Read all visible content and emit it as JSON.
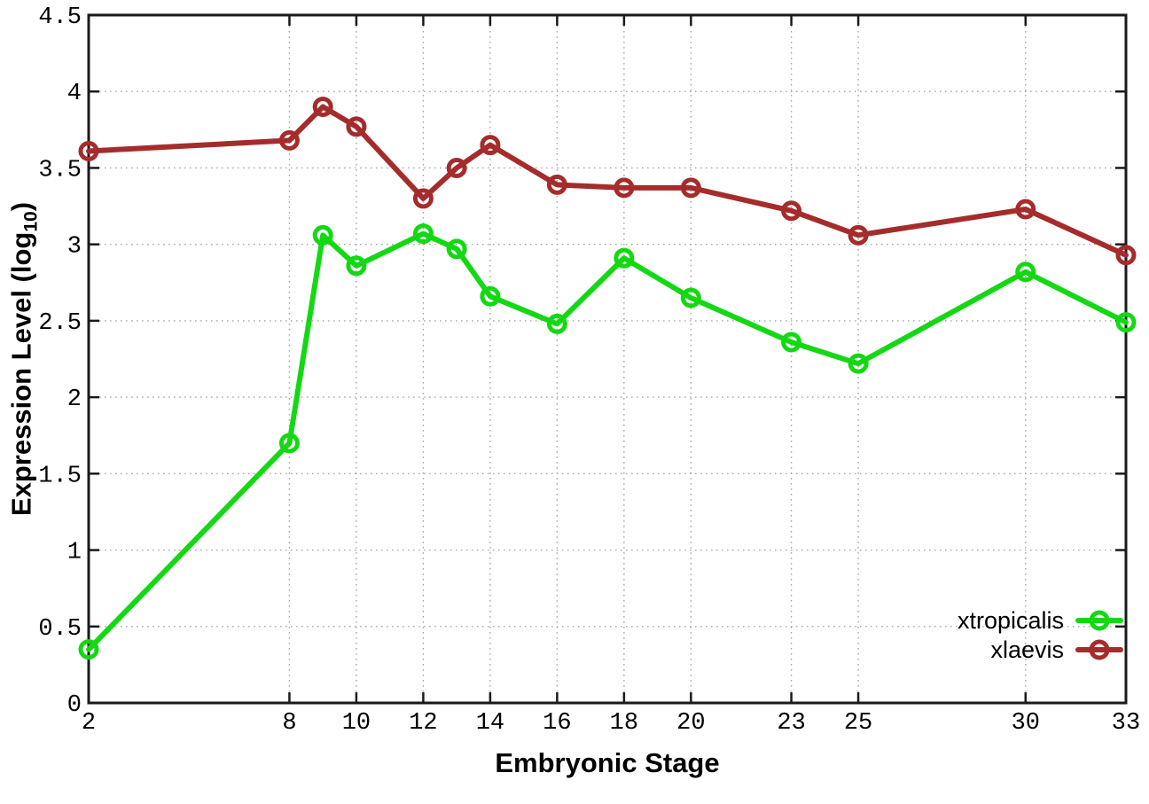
{
  "chart_data": {
    "type": "line",
    "title": "",
    "xlabel": "Embryonic Stage",
    "ylabel": "Expression Level (log10)",
    "ylabel_parts": {
      "pre": "Expression Level (log",
      "sub": "10",
      "post": ")"
    },
    "xlim": [
      2,
      33
    ],
    "ylim": [
      0,
      4.5
    ],
    "grid": true,
    "x": [
      2,
      8,
      9,
      10,
      12,
      13,
      14,
      16,
      18,
      20,
      23,
      25,
      30,
      33
    ],
    "x_ticks": [
      2,
      8,
      10,
      12,
      14,
      16,
      18,
      20,
      23,
      25,
      30,
      33
    ],
    "x_tick_labels": [
      "2",
      "8",
      "10",
      "12",
      "14",
      "16",
      "18",
      "20",
      "23",
      "25",
      "30",
      "33"
    ],
    "y_ticks": [
      0,
      0.5,
      1,
      1.5,
      2,
      2.5,
      3,
      3.5,
      4,
      4.5
    ],
    "y_tick_labels": [
      "0",
      "0.5",
      "1",
      "1.5",
      "2",
      "2.5",
      "3",
      "3.5",
      "4",
      "4.5"
    ],
    "series": [
      {
        "name": "xtropicalis",
        "color": "#14d814",
        "values": [
          0.35,
          1.7,
          3.06,
          2.86,
          3.07,
          2.97,
          2.66,
          2.48,
          2.91,
          2.65,
          2.36,
          2.22,
          2.82,
          2.49
        ]
      },
      {
        "name": "xlaevis",
        "color": "#a52c2c",
        "values": [
          3.61,
          3.68,
          3.9,
          3.77,
          3.3,
          3.5,
          3.65,
          3.39,
          3.37,
          3.37,
          3.22,
          3.06,
          3.23,
          2.93
        ]
      }
    ],
    "legend_position": "bottom-right",
    "legend_entries": [
      "xtropicalis",
      "xlaevis"
    ],
    "style": {
      "border_color": "#1a1a1a",
      "grid_color": "#a8a8a8",
      "tick_label_color": "#000000"
    }
  }
}
